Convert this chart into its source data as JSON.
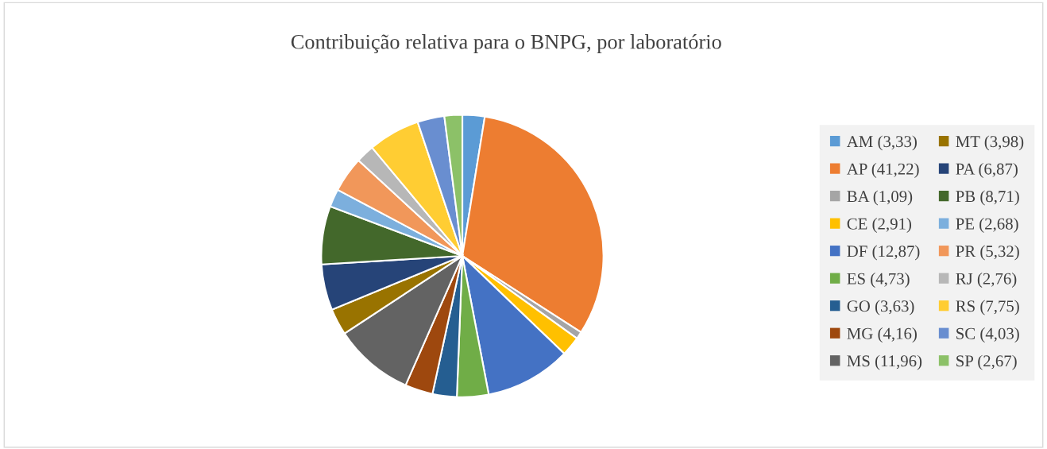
{
  "chart_data": {
    "type": "pie",
    "title": "Contribuição relativa para o BNPG, por laboratório",
    "categories": [
      "AM (3,33)",
      "AP (41,22)",
      "BA (1,09)",
      "CE (2,91)",
      "DF (12,87)",
      "ES (4,73)",
      "GO (3,63)",
      "MG (4,16)",
      "MS (11,96)",
      "MT (3,98)",
      "PA (6,87)",
      "PB (8,71)",
      "PE (2,68)",
      "PR (5,32)",
      "RJ (2,76)",
      "RS (7,75)",
      "SC (4,03)",
      "SP (2,67)"
    ],
    "values": [
      3.33,
      41.22,
      1.09,
      2.91,
      12.87,
      4.73,
      3.63,
      4.16,
      11.96,
      3.98,
      6.87,
      8.71,
      2.68,
      5.32,
      2.76,
      7.75,
      4.03,
      2.67
    ],
    "colors": [
      "#5b9bd5",
      "#ed7d31",
      "#a5a5a5",
      "#ffc000",
      "#4472c4",
      "#70ad47",
      "#255e91",
      "#9e480e",
      "#636363",
      "#997300",
      "#264478",
      "#43682b",
      "#7cafdd",
      "#f1975a",
      "#b7b7b7",
      "#ffcd33",
      "#698ed0",
      "#8cc168"
    ],
    "legend": "right"
  }
}
